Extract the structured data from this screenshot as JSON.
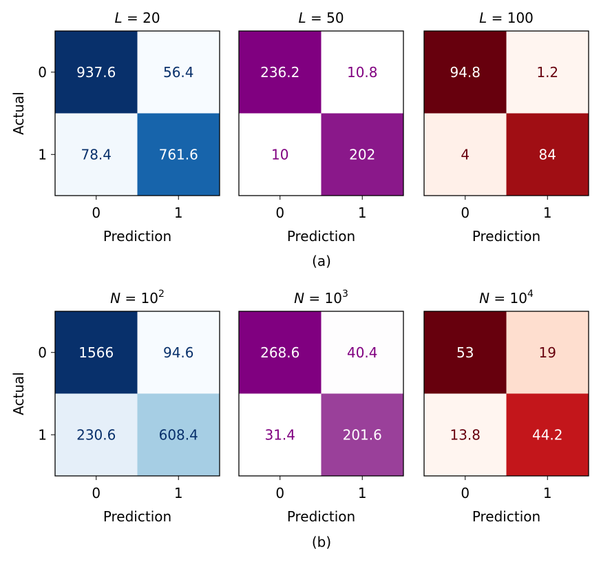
{
  "chart_data": [
    {
      "type": "heatmap",
      "panel": "a",
      "title": "L = 20",
      "title_var": "L",
      "title_val": "20",
      "title_exp": "",
      "colormap": "Blues",
      "xlabel": "Prediction",
      "ylabel": "Actual",
      "x_ticks": [
        "0",
        "1"
      ],
      "y_ticks": [
        "0",
        "1"
      ],
      "matrix": [
        [
          937.6,
          56.4
        ],
        [
          78.4,
          761.6
        ]
      ],
      "labels": [
        [
          "937.6",
          "56.4"
        ],
        [
          "78.4",
          "761.6"
        ]
      ]
    },
    {
      "type": "heatmap",
      "panel": "a",
      "title": "L = 50",
      "title_var": "L",
      "title_val": "50",
      "title_exp": "",
      "colormap": "Purples",
      "xlabel": "Prediction",
      "ylabel": "",
      "x_ticks": [
        "0",
        "1"
      ],
      "y_ticks": [],
      "matrix": [
        [
          236.2,
          10.8
        ],
        [
          10,
          202
        ]
      ],
      "labels": [
        [
          "236.2",
          "10.8"
        ],
        [
          "10",
          "202"
        ]
      ]
    },
    {
      "type": "heatmap",
      "panel": "a",
      "title": "L = 100",
      "title_var": "L",
      "title_val": "100",
      "title_exp": "",
      "colormap": "Reds",
      "xlabel": "Prediction",
      "ylabel": "",
      "x_ticks": [
        "0",
        "1"
      ],
      "y_ticks": [],
      "matrix": [
        [
          94.8,
          1.2
        ],
        [
          4,
          84
        ]
      ],
      "labels": [
        [
          "94.8",
          "1.2"
        ],
        [
          "4",
          "84"
        ]
      ]
    },
    {
      "type": "heatmap",
      "panel": "b",
      "title": "N = 10^2",
      "title_var": "N",
      "title_val": "10",
      "title_exp": "2",
      "colormap": "Blues",
      "xlabel": "Prediction",
      "ylabel": "Actual",
      "x_ticks": [
        "0",
        "1"
      ],
      "y_ticks": [
        "0",
        "1"
      ],
      "matrix": [
        [
          1566,
          94.6
        ],
        [
          230.6,
          608.4
        ]
      ],
      "labels": [
        [
          "1566",
          "94.6"
        ],
        [
          "230.6",
          "608.4"
        ]
      ]
    },
    {
      "type": "heatmap",
      "panel": "b",
      "title": "N = 10^3",
      "title_var": "N",
      "title_val": "10",
      "title_exp": "3",
      "colormap": "Purples",
      "xlabel": "Prediction",
      "ylabel": "",
      "x_ticks": [
        "0",
        "1"
      ],
      "y_ticks": [],
      "matrix": [
        [
          268.6,
          40.4
        ],
        [
          31.4,
          201.6
        ]
      ],
      "labels": [
        [
          "268.6",
          "40.4"
        ],
        [
          "31.4",
          "201.6"
        ]
      ]
    },
    {
      "type": "heatmap",
      "panel": "b",
      "title": "N = 10^4",
      "title_var": "N",
      "title_val": "10",
      "title_exp": "4",
      "colormap": "Reds",
      "xlabel": "Prediction",
      "ylabel": "",
      "x_ticks": [
        "0",
        "1"
      ],
      "y_ticks": [],
      "matrix": [
        [
          53,
          19
        ],
        [
          13.8,
          44.2
        ]
      ],
      "labels": [
        [
          "53",
          "19"
        ],
        [
          "13.8",
          "44.2"
        ]
      ]
    }
  ],
  "captions": [
    "(a)",
    "(b)"
  ],
  "colors": {
    "Blues": {
      "stops": [
        "#f7fbff",
        "#deebf7",
        "#c6dbef",
        "#9ecae1",
        "#6baed6",
        "#4292c6",
        "#2171b5",
        "#08519c",
        "#08306b"
      ],
      "text_dark": "#08306b"
    },
    "Purples": {
      "stops": [
        "#ffffff",
        "#fbf5fb",
        "#e5c9e5",
        "#c28fc2",
        "#a050a0",
        "#8b1a8b",
        "#800080"
      ],
      "text_dark": "#800080"
    },
    "Reds": {
      "stops": [
        "#fff5f0",
        "#fee0d2",
        "#fcbba1",
        "#fc9272",
        "#fb6a4a",
        "#ef3b2c",
        "#cb181d",
        "#a50f15",
        "#67000d"
      ],
      "text_dark": "#67000d"
    },
    "text_light": "#ffffff"
  }
}
